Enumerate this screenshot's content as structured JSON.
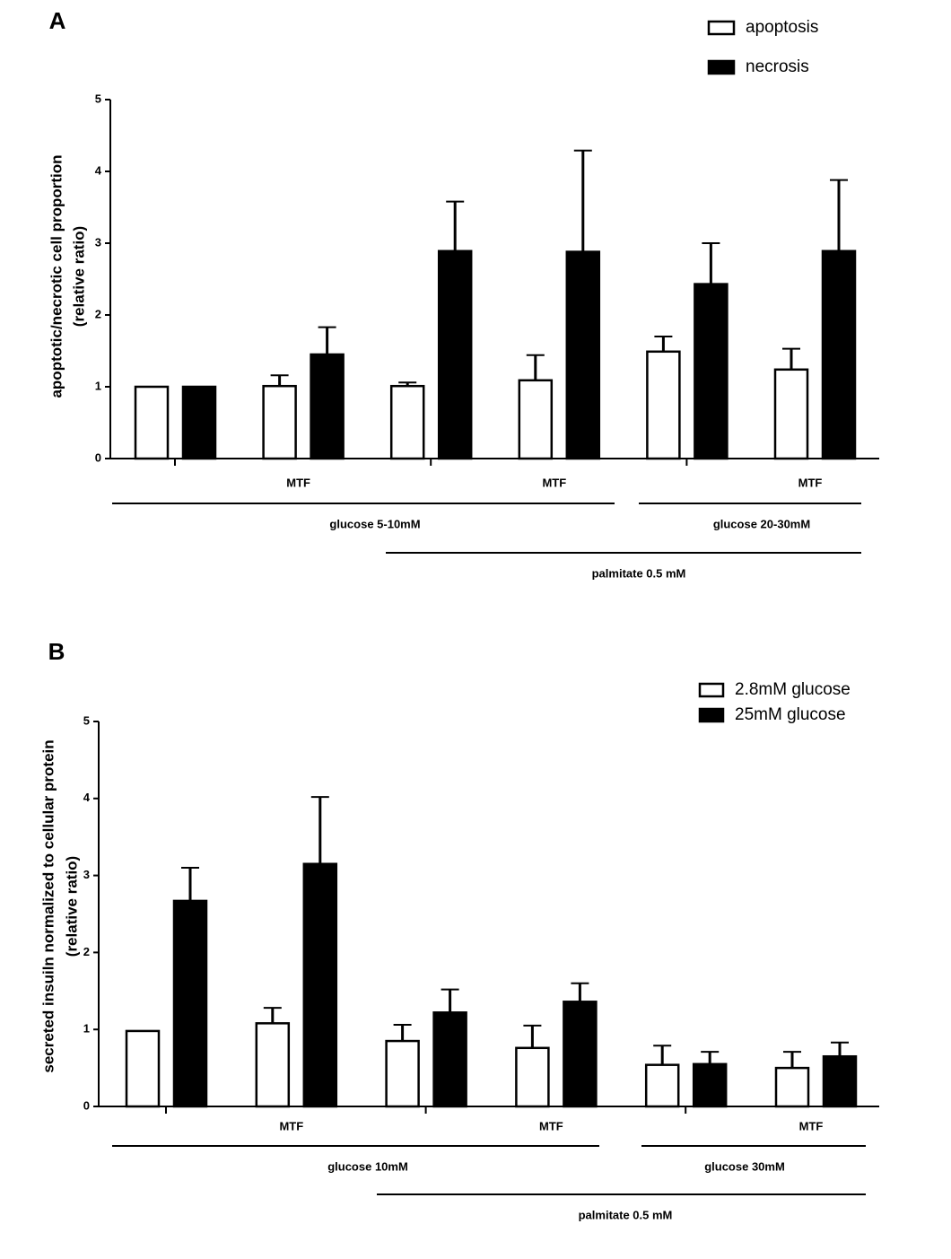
{
  "chart_data": [
    {
      "type": "bar",
      "panel": "A",
      "ylabel": [
        "apoptotic/necrotic cell proportion",
        "(relative ratio)"
      ],
      "categories": [
        null,
        "MTF",
        null,
        "MTF",
        null,
        "MTF"
      ],
      "series": [
        {
          "name": "apoptosis",
          "color": "#ffffff",
          "values": [
            1.0,
            1.01,
            1.01,
            1.09,
            1.49,
            1.24
          ],
          "errors": [
            null,
            0.15,
            0.05,
            0.35,
            0.21,
            0.29
          ]
        },
        {
          "name": "necrosis",
          "color": "#000000",
          "values": [
            1.0,
            1.45,
            2.89,
            2.88,
            2.43,
            2.89
          ],
          "errors": [
            null,
            0.38,
            0.69,
            1.41,
            0.57,
            0.99
          ]
        }
      ],
      "brackets": [
        "glucose  5-10mM",
        "glucose  20-30mM",
        "palmitate 0.5 mM"
      ],
      "ylim": [
        0,
        5
      ],
      "yticks": [
        0,
        1,
        2,
        3,
        4,
        5
      ]
    },
    {
      "type": "bar",
      "panel": "B",
      "ylabel": [
        "secreted insuiln normalized to cellular protein",
        "(relative ratio)"
      ],
      "categories": [
        null,
        "MTF",
        null,
        "MTF",
        null,
        "MTF"
      ],
      "series": [
        {
          "name": "2.8mM glucose",
          "color": "#ffffff",
          "values": [
            0.98,
            1.08,
            0.85,
            0.76,
            0.54,
            0.5
          ],
          "errors": [
            null,
            0.2,
            0.21,
            0.29,
            0.25,
            0.21
          ]
        },
        {
          "name": "25mM glucose",
          "color": "#000000",
          "values": [
            2.67,
            3.15,
            1.22,
            1.36,
            0.55,
            0.65
          ],
          "errors": [
            0.43,
            0.87,
            0.3,
            0.24,
            0.16,
            0.18
          ]
        }
      ],
      "brackets": [
        "glucose  10mM",
        "glucose  30mM",
        "palmitate 0.5 mM"
      ],
      "ylim": [
        0,
        5
      ],
      "yticks": [
        0,
        1,
        2,
        3,
        4,
        5
      ]
    }
  ]
}
